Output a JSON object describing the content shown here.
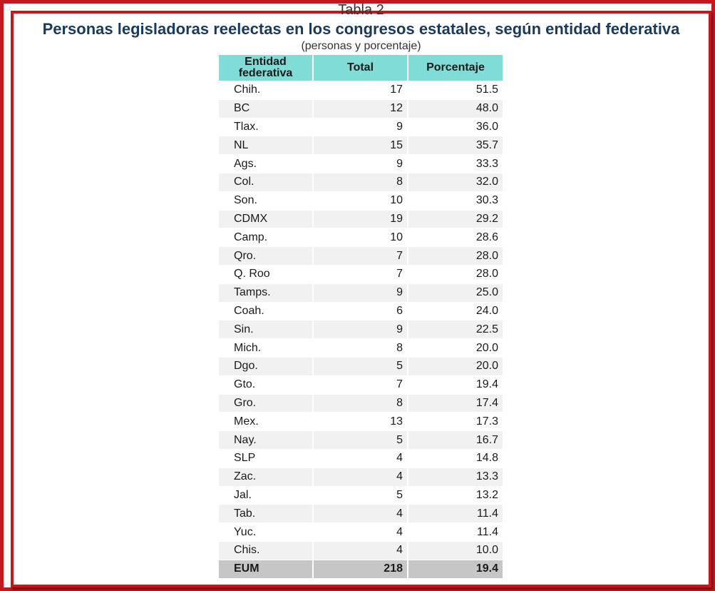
{
  "header": {
    "cut_label": "Tabla 2",
    "title": "Personas legisladoras reelectas en los congresos estatales, según entidad federativa",
    "subtitle": "(personas y porcentaje)"
  },
  "table": {
    "columns": {
      "entity_line1": "Entidad",
      "entity_line2": "federativa",
      "total": "Total",
      "percent": "Porcentaje"
    },
    "rows": [
      {
        "entity": "Chih.",
        "total": "17",
        "percent": "51.5"
      },
      {
        "entity": "BC",
        "total": "12",
        "percent": "48.0"
      },
      {
        "entity": "Tlax.",
        "total": "9",
        "percent": "36.0"
      },
      {
        "entity": "NL",
        "total": "15",
        "percent": "35.7"
      },
      {
        "entity": "Ags.",
        "total": "9",
        "percent": "33.3"
      },
      {
        "entity": "Col.",
        "total": "8",
        "percent": "32.0"
      },
      {
        "entity": "Son.",
        "total": "10",
        "percent": "30.3"
      },
      {
        "entity": "CDMX",
        "total": "19",
        "percent": "29.2"
      },
      {
        "entity": "Camp.",
        "total": "10",
        "percent": "28.6"
      },
      {
        "entity": "Qro.",
        "total": "7",
        "percent": "28.0"
      },
      {
        "entity": "Q. Roo",
        "total": "7",
        "percent": "28.0"
      },
      {
        "entity": "Tamps.",
        "total": "9",
        "percent": "25.0"
      },
      {
        "entity": "Coah.",
        "total": "6",
        "percent": "24.0"
      },
      {
        "entity": "Sin.",
        "total": "9",
        "percent": "22.5"
      },
      {
        "entity": "Mich.",
        "total": "8",
        "percent": "20.0"
      },
      {
        "entity": "Dgo.",
        "total": "5",
        "percent": "20.0"
      },
      {
        "entity": "Gto.",
        "total": "7",
        "percent": "19.4"
      },
      {
        "entity": "Gro.",
        "total": "8",
        "percent": "17.4"
      },
      {
        "entity": "Mex.",
        "total": "13",
        "percent": "17.3"
      },
      {
        "entity": "Nay.",
        "total": "5",
        "percent": "16.7"
      },
      {
        "entity": "SLP",
        "total": "4",
        "percent": "14.8"
      },
      {
        "entity": "Zac.",
        "total": "4",
        "percent": "13.3"
      },
      {
        "entity": "Jal.",
        "total": "5",
        "percent": "13.2"
      },
      {
        "entity": "Tab.",
        "total": "4",
        "percent": "11.4"
      },
      {
        "entity": "Yuc.",
        "total": "4",
        "percent": "11.4"
      },
      {
        "entity": "Chis.",
        "total": "4",
        "percent": "10.0"
      }
    ],
    "total_row": {
      "entity": "EUM",
      "total": "218",
      "percent": "19.4"
    }
  },
  "colors": {
    "frame": "#c8161d",
    "title": "#1a3a5c",
    "header_fill": "#7fdcd6",
    "alt_row_fill": "#f1f1f1",
    "total_row_fill": "#c6c6c6"
  }
}
